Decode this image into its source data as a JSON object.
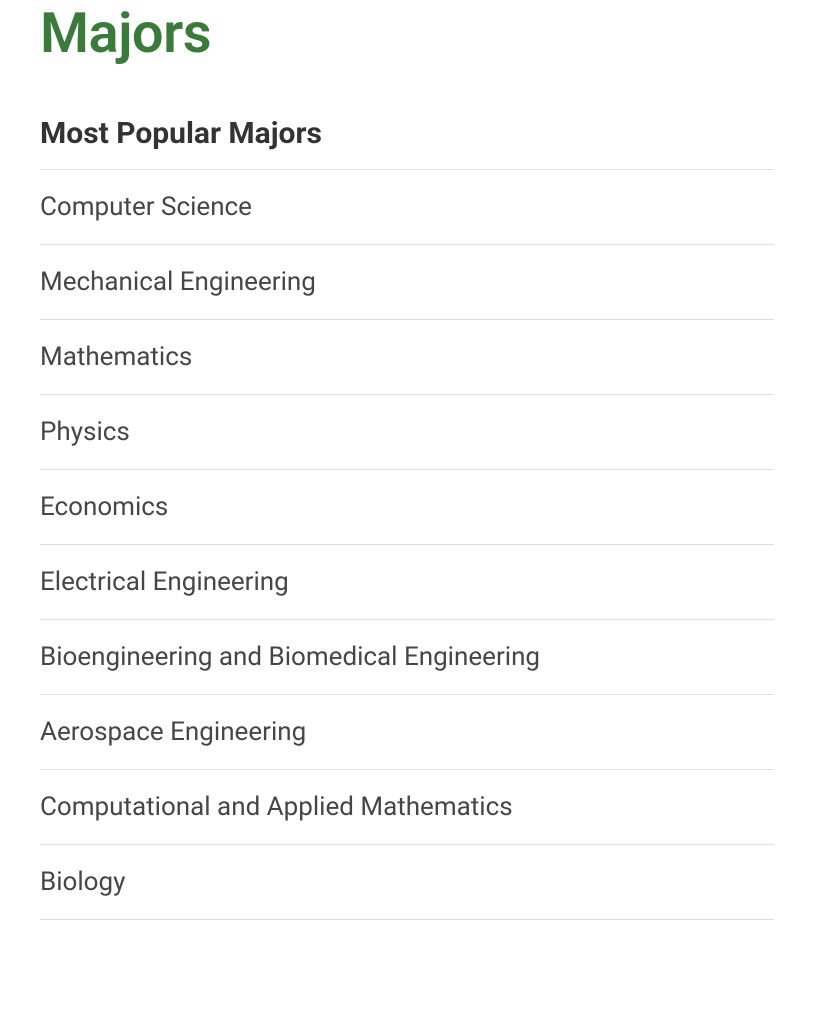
{
  "header": {
    "title": "Majors"
  },
  "section": {
    "subtitle": "Most Popular Majors",
    "majors": [
      "Computer Science",
      "Mechanical Engineering",
      "Mathematics",
      "Physics",
      "Economics",
      "Electrical Engineering",
      "Bioengineering and Biomedical Engineering",
      "Aerospace Engineering",
      "Computational and Applied Mathematics",
      "Biology"
    ]
  },
  "colors": {
    "title_color": "#3b7a3b",
    "subtitle_color": "#333333",
    "item_text_color": "#464646",
    "divider_color": "#e0e0e0",
    "background_color": "#ffffff"
  },
  "typography": {
    "title_fontsize": 56,
    "title_weight": 600,
    "subtitle_fontsize": 30,
    "subtitle_weight": 700,
    "item_fontsize": 26,
    "item_weight": 400
  }
}
